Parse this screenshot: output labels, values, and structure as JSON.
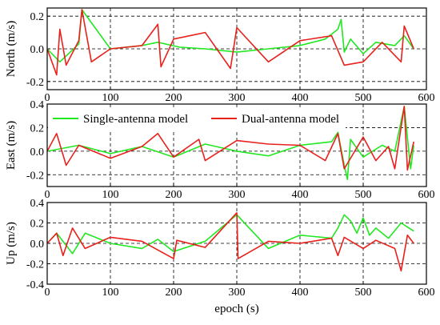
{
  "xlabel": "epoch (s)",
  "colors": {
    "single": "#22e822",
    "dual": "#e8211c",
    "grid": "#000000",
    "frame": "#000000"
  },
  "legend": {
    "placement": "top-left of middle panel",
    "entries": [
      "Single-antenna model",
      "Dual-antenna model"
    ]
  },
  "chart_data": [
    {
      "type": "line",
      "ylabel": "North (m/s)",
      "xlim": [
        0,
        600
      ],
      "ylim": [
        -0.25,
        0.25
      ],
      "xticks": [
        "0",
        "100",
        "200",
        "300",
        "400",
        "500",
        "600"
      ],
      "yticks": [
        "-0.2",
        "0.0",
        "0.2"
      ],
      "grid": "dashed",
      "series": [
        {
          "name": "Single-antenna model",
          "x": [
            0,
            20,
            50,
            55,
            100,
            150,
            175,
            210,
            250,
            300,
            350,
            400,
            440,
            460,
            465,
            470,
            480,
            500,
            520,
            550,
            565,
            580
          ],
          "values": [
            0.0,
            -0.08,
            0.03,
            0.24,
            0.0,
            0.02,
            0.04,
            0.01,
            0.0,
            -0.02,
            0.0,
            0.02,
            0.06,
            0.12,
            0.18,
            -0.02,
            0.06,
            -0.03,
            0.04,
            0.02,
            0.08,
            0.0
          ]
        },
        {
          "name": "Dual-antenna model",
          "x": [
            0,
            15,
            20,
            30,
            50,
            55,
            70,
            100,
            150,
            175,
            180,
            200,
            250,
            290,
            300,
            350,
            400,
            450,
            470,
            500,
            530,
            560,
            565,
            580
          ],
          "values": [
            0.0,
            -0.16,
            0.12,
            -0.1,
            0.05,
            0.24,
            -0.08,
            0.0,
            0.02,
            0.15,
            -0.11,
            0.06,
            0.1,
            -0.12,
            0.13,
            -0.08,
            0.05,
            0.08,
            -0.1,
            -0.08,
            0.04,
            -0.08,
            0.14,
            0.0
          ]
        }
      ]
    },
    {
      "type": "line",
      "ylabel": "East (m/s)",
      "xlim": [
        0,
        600
      ],
      "ylim": [
        -0.3,
        0.4
      ],
      "xticks": [
        "0",
        "100",
        "200",
        "300",
        "400",
        "500",
        "600"
      ],
      "yticks": [
        "-0.2",
        "0.0",
        "0.2",
        "0.4"
      ],
      "grid": "dashed",
      "series": [
        {
          "name": "Single-antenna model",
          "x": [
            0,
            50,
            100,
            150,
            200,
            250,
            300,
            350,
            400,
            450,
            460,
            470,
            475,
            480,
            500,
            530,
            550,
            565,
            575,
            580
          ],
          "values": [
            0.0,
            0.05,
            -0.02,
            0.04,
            -0.05,
            0.06,
            0.0,
            -0.04,
            0.05,
            0.08,
            0.16,
            -0.12,
            -0.24,
            0.1,
            -0.05,
            0.05,
            0.0,
            0.38,
            -0.15,
            0.05
          ]
        },
        {
          "name": "Dual-antenna model",
          "x": [
            0,
            15,
            30,
            50,
            100,
            150,
            175,
            200,
            240,
            250,
            300,
            350,
            400,
            440,
            460,
            470,
            500,
            520,
            540,
            550,
            565,
            570,
            580
          ],
          "values": [
            0.0,
            0.15,
            -0.12,
            0.05,
            -0.06,
            0.04,
            0.15,
            -0.05,
            0.1,
            -0.08,
            0.09,
            0.06,
            0.05,
            -0.08,
            0.15,
            -0.15,
            0.12,
            -0.08,
            0.04,
            -0.15,
            0.38,
            -0.16,
            0.08
          ]
        }
      ]
    },
    {
      "type": "line",
      "ylabel": "Up (m/s)",
      "xlim": [
        0,
        600
      ],
      "ylim": [
        -0.4,
        0.4
      ],
      "xticks": [
        "0",
        "100",
        "200",
        "300",
        "400",
        "500",
        "600"
      ],
      "yticks": [
        "-0.4",
        "-0.2",
        "0.0",
        "0.2",
        "0.4"
      ],
      "grid": "dashed",
      "series": [
        {
          "name": "Single-antenna model",
          "x": [
            0,
            15,
            40,
            60,
            100,
            150,
            175,
            200,
            250,
            300,
            350,
            400,
            450,
            460,
            470,
            480,
            490,
            500,
            510,
            520,
            540,
            560,
            580
          ],
          "values": [
            0.0,
            0.1,
            -0.1,
            0.1,
            0.0,
            -0.05,
            0.04,
            -0.08,
            0.02,
            0.28,
            -0.05,
            0.08,
            0.05,
            0.15,
            0.28,
            0.22,
            0.1,
            0.25,
            0.08,
            0.15,
            0.05,
            0.2,
            0.12
          ]
        },
        {
          "name": "Dual-antenna model",
          "x": [
            0,
            15,
            25,
            40,
            60,
            100,
            150,
            200,
            205,
            250,
            300,
            302,
            350,
            400,
            450,
            460,
            470,
            500,
            520,
            550,
            560,
            570,
            580
          ],
          "values": [
            0.0,
            0.1,
            -0.12,
            0.15,
            -0.05,
            0.06,
            0.02,
            -0.15,
            0.03,
            -0.04,
            0.3,
            -0.15,
            0.02,
            0.0,
            0.05,
            -0.12,
            0.06,
            -0.05,
            0.03,
            -0.05,
            -0.27,
            0.08,
            0.0
          ]
        }
      ]
    }
  ]
}
